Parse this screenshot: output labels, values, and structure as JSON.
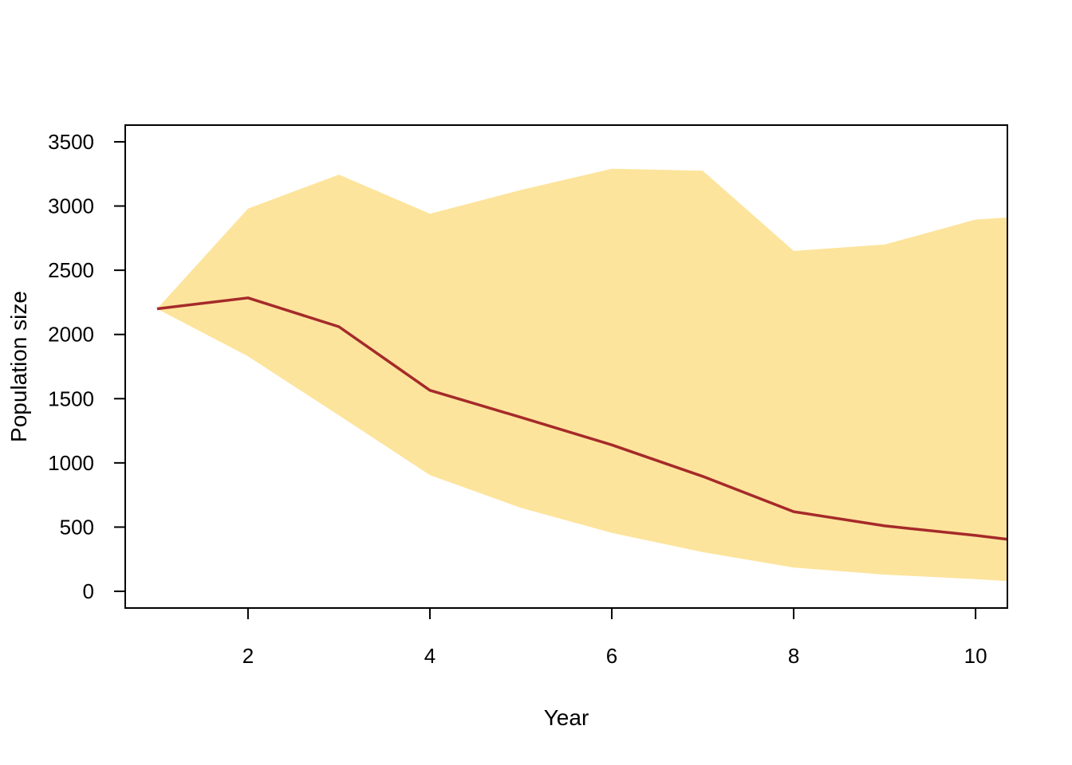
{
  "chart_data": {
    "type": "area",
    "xlabel": "Year",
    "ylabel": "Population size",
    "xlim": [
      0.65,
      10.35
    ],
    "ylim": [
      -130,
      3630
    ],
    "x_ticks": [
      2,
      4,
      6,
      8,
      10
    ],
    "y_ticks": [
      0,
      500,
      1000,
      1500,
      2000,
      2500,
      3000,
      3500
    ],
    "grid": false,
    "colors": {
      "band": "#fde49c",
      "line": "#a52a2a",
      "axis": "#000000"
    },
    "x": [
      1,
      2,
      3,
      4,
      5,
      6,
      7,
      8,
      9,
      10,
      10.35
    ],
    "series": [
      {
        "role": "upper",
        "values": [
          2200,
          2980,
          3245,
          2940,
          3125,
          3290,
          3275,
          2650,
          2700,
          2895,
          2910
        ]
      },
      {
        "role": "median",
        "values": [
          2200,
          2285,
          2060,
          1565,
          1355,
          1140,
          895,
          620,
          510,
          435,
          405
        ]
      },
      {
        "role": "lower",
        "values": [
          2200,
          1830,
          1370,
          905,
          650,
          455,
          305,
          185,
          130,
          95,
          80
        ]
      }
    ]
  }
}
